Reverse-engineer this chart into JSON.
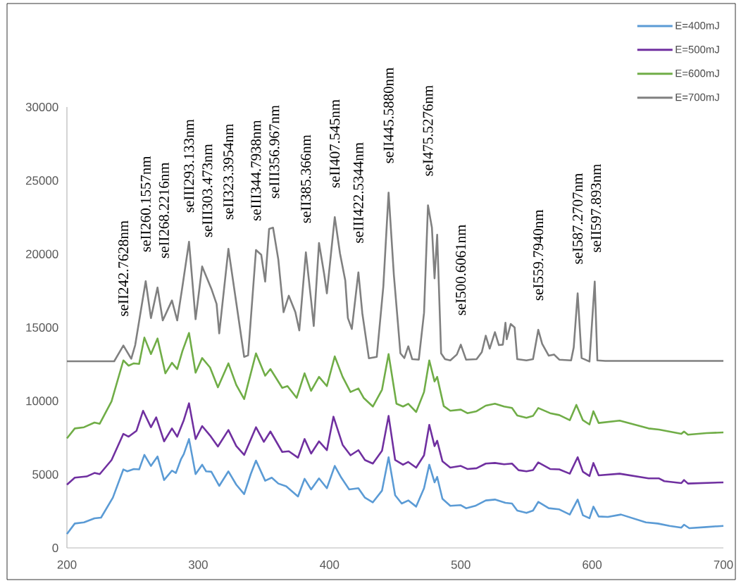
{
  "chart_data": {
    "type": "line",
    "xlim": [
      200,
      700
    ],
    "xticks": [
      200,
      300,
      400,
      500,
      600,
      700
    ],
    "ylim": [
      0,
      30000
    ],
    "yticks": [
      0,
      5000,
      10000,
      15000,
      20000,
      25000,
      30000
    ],
    "legend": "top right",
    "series": [
      {
        "name": "E=400mJ",
        "color": "#5b9bd5",
        "x": [
          200,
          206,
          213,
          221,
          226,
          235,
          243,
          246,
          251,
          255,
          259,
          264,
          269,
          274,
          280,
          283,
          287,
          289,
          293,
          298,
          303,
          306,
          310,
          316,
          323,
          329,
          335,
          340,
          344,
          351,
          356,
          361,
          367,
          376,
          381,
          386,
          392,
          398,
          404,
          409,
          415,
          422,
          427,
          433,
          440,
          445,
          450,
          455,
          460,
          466,
          472,
          476,
          480,
          482,
          486,
          492,
          500,
          504,
          511,
          519,
          526,
          534,
          539,
          543,
          550,
          555,
          559,
          567,
          575,
          583,
          589,
          593,
          598,
          601,
          605,
          612,
          622,
          641,
          650,
          659,
          668,
          670,
          674,
          687,
          700
        ],
        "values": [
          950,
          1660,
          1740,
          2010,
          2060,
          3420,
          5340,
          5210,
          5370,
          5340,
          6330,
          5580,
          6220,
          4620,
          5260,
          5100,
          6060,
          6380,
          7410,
          5020,
          5660,
          5210,
          5180,
          4220,
          5210,
          4300,
          3660,
          5020,
          5940,
          4570,
          4780,
          4380,
          4190,
          3500,
          4700,
          3980,
          4730,
          4060,
          5580,
          4780,
          3980,
          4060,
          3420,
          3100,
          3900,
          6170,
          3580,
          3020,
          3230,
          2810,
          4060,
          5660,
          4460,
          4830,
          3340,
          2860,
          2910,
          2700,
          2860,
          3230,
          3290,
          3070,
          3020,
          2540,
          2380,
          2540,
          3130,
          2700,
          2620,
          2270,
          3290,
          2220,
          2020,
          2810,
          2140,
          2110,
          2270,
          1740,
          1660,
          1500,
          1380,
          1580,
          1340,
          1420,
          1500
        ]
      },
      {
        "name": "E=500mJ",
        "color": "#7030a0",
        "x": [
          200,
          206,
          215,
          221,
          225,
          234,
          243,
          247,
          253,
          258,
          264,
          268,
          274,
          280,
          284,
          289,
          293,
          298,
          303,
          309,
          315,
          323,
          329,
          335,
          344,
          350,
          355,
          364,
          369,
          376,
          381,
          386,
          392,
          398,
          403,
          410,
          416,
          422,
          427,
          433,
          440,
          445,
          450,
          456,
          460,
          466,
          472,
          476,
          480,
          482,
          486,
          492,
          500,
          505,
          512,
          519,
          526,
          533,
          539,
          544,
          550,
          555,
          559,
          568,
          575,
          583,
          589,
          593,
          598,
          601,
          605,
          621,
          643,
          651,
          655,
          668,
          670,
          673,
          700
        ],
        "values": [
          4300,
          4780,
          4860,
          5100,
          5020,
          5980,
          7760,
          7570,
          7970,
          9330,
          8210,
          8880,
          7250,
          8130,
          7570,
          8690,
          9840,
          7410,
          8290,
          7650,
          6900,
          8020,
          6930,
          6330,
          8210,
          7220,
          7920,
          6530,
          6580,
          6140,
          7410,
          6420,
          7250,
          6650,
          8930,
          7010,
          6300,
          6650,
          5980,
          5740,
          6610,
          8980,
          5980,
          5660,
          5850,
          5460,
          6300,
          8370,
          6930,
          7290,
          5900,
          5460,
          5580,
          5370,
          5420,
          5740,
          5780,
          5690,
          5740,
          5290,
          5210,
          5300,
          5820,
          5370,
          5340,
          5050,
          6170,
          5180,
          4890,
          5780,
          4940,
          5050,
          4730,
          4730,
          4540,
          4410,
          4620,
          4380,
          4460
        ]
      },
      {
        "name": "E=600mJ",
        "color": "#70ad47",
        "x": [
          200,
          206,
          213,
          221,
          225,
          234,
          243,
          247,
          251,
          255,
          259,
          264,
          269,
          275,
          280,
          284,
          288,
          293,
          298,
          303,
          309,
          315,
          323,
          329,
          335,
          344,
          351,
          355,
          364,
          368,
          375,
          381,
          386,
          392,
          398,
          404,
          410,
          416,
          422,
          426,
          433,
          440,
          445,
          451,
          456,
          460,
          466,
          472,
          476,
          480,
          482,
          487,
          492,
          500,
          505,
          512,
          519,
          526,
          533,
          539,
          543,
          550,
          555,
          559,
          568,
          575,
          583,
          588,
          593,
          598,
          601,
          605,
          621,
          643,
          651,
          668,
          670,
          673,
          687,
          700
        ],
        "values": [
          7450,
          8130,
          8210,
          8530,
          8450,
          9970,
          12760,
          12400,
          12560,
          12520,
          14310,
          13190,
          14250,
          11880,
          12600,
          12170,
          13400,
          14630,
          11920,
          12920,
          12280,
          10930,
          12560,
          11090,
          10130,
          13240,
          11720,
          12170,
          10890,
          11010,
          10210,
          11880,
          10690,
          11640,
          11010,
          13030,
          11640,
          10610,
          10850,
          10210,
          9620,
          10770,
          13190,
          9810,
          9620,
          9810,
          9250,
          10610,
          12760,
          11330,
          11640,
          9650,
          9330,
          9410,
          9170,
          9300,
          9680,
          9810,
          9620,
          9520,
          9010,
          8850,
          8980,
          9520,
          9170,
          9040,
          8690,
          9730,
          8690,
          8400,
          9300,
          8500,
          8660,
          8130,
          8050,
          7760,
          7920,
          7700,
          7810,
          7860
        ]
      },
      {
        "name": "E=700mJ",
        "color": "#808080",
        "x": [
          200,
          236,
          243,
          249,
          252,
          260,
          264,
          269,
          273,
          280,
          284,
          288,
          293,
          298,
          303,
          310,
          314,
          316,
          323,
          329,
          335,
          338,
          344,
          348,
          351,
          354,
          357,
          361,
          365,
          369,
          374,
          377,
          382,
          386,
          388,
          392,
          396,
          398,
          404,
          408,
          412,
          414,
          417,
          422,
          425,
          430,
          436,
          441,
          445,
          449,
          452,
          454,
          457,
          460,
          463,
          468,
          472,
          475,
          478,
          480,
          482,
          485,
          488,
          492,
          497,
          500,
          504,
          512,
          516,
          519,
          522,
          526,
          529,
          532,
          534,
          535,
          538,
          541,
          543,
          550,
          555,
          559,
          562,
          567,
          571,
          575,
          584,
          586,
          589,
          592,
          598,
          602,
          604,
          610,
          700
        ],
        "values": [
          12700,
          12700,
          13770,
          12870,
          13800,
          18150,
          15640,
          17720,
          15480,
          16840,
          15480,
          17800,
          20830,
          15560,
          19150,
          17640,
          16600,
          14600,
          20350,
          16680,
          13000,
          13100,
          20270,
          19950,
          18120,
          21710,
          21790,
          19630,
          16040,
          17160,
          16040,
          14800,
          20110,
          16840,
          15100,
          20750,
          18590,
          17320,
          22510,
          20030,
          18200,
          15640,
          14900,
          18750,
          15960,
          12900,
          13000,
          17800,
          24180,
          18590,
          15400,
          13240,
          12920,
          13720,
          12840,
          12810,
          16000,
          23310,
          21790,
          18350,
          21310,
          13240,
          12840,
          12760,
          13160,
          13830,
          12810,
          12840,
          13320,
          14440,
          13560,
          14680,
          13800,
          13830,
          15320,
          14200,
          15240,
          15000,
          12840,
          12760,
          12840,
          14840,
          13880,
          13080,
          13160,
          12810,
          12760,
          13640,
          17320,
          12920,
          12680,
          18120,
          12760,
          12720,
          12720
        ]
      }
    ],
    "annotations": [
      {
        "text": "seII242.7628nm",
        "x": 243,
        "y": 13770
      },
      {
        "text": "seII260.1557nm",
        "x": 260,
        "y": 18150
      },
      {
        "text": "seII268.2216nm",
        "x": 269,
        "y": 17720
      },
      {
        "text": "seIII293.133nm",
        "x": 293,
        "y": 20830
      },
      {
        "text": "seIII303.473nm",
        "x": 303,
        "y": 19150
      },
      {
        "text": "seII323.3954nm",
        "x": 323,
        "y": 20350
      },
      {
        "text": "seIII344.7938nm",
        "x": 344,
        "y": 20270
      },
      {
        "text": "seIII356.967nm",
        "x": 357,
        "y": 21790
      },
      {
        "text": "seII385.366nm",
        "x": 382,
        "y": 20110
      },
      {
        "text": "seII407.545nm",
        "x": 404,
        "y": 22510
      },
      {
        "text": "seIII422.5344nm",
        "x": 422,
        "y": 18750
      },
      {
        "text": "seII445.5880nm",
        "x": 445,
        "y": 24180
      },
      {
        "text": "seI475.5276nm",
        "x": 475,
        "y": 23310
      },
      {
        "text": "seI500.6061nm",
        "x": 500,
        "y": 13830
      },
      {
        "text": "seI559.7940nm",
        "x": 559,
        "y": 14840
      },
      {
        "text": "seI587.2707nm",
        "x": 589,
        "y": 17320
      },
      {
        "text": "seII597.893nm",
        "x": 602,
        "y": 18120
      }
    ]
  }
}
